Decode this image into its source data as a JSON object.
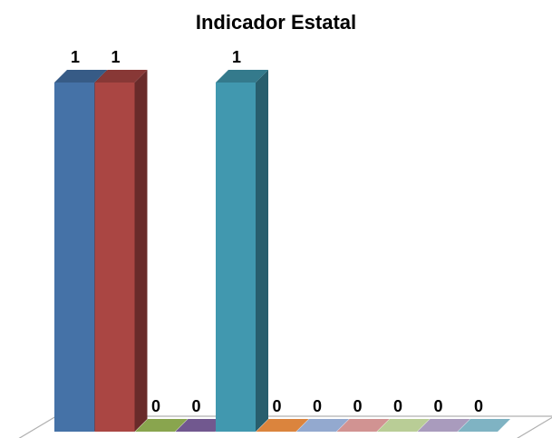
{
  "chart_data": {
    "type": "bar",
    "title": "Indicador Estatal",
    "xlabel": "",
    "ylabel": "",
    "ylim": [
      0,
      1
    ],
    "grid": false,
    "legend": "none",
    "three_d": true,
    "values": [
      1,
      1,
      0,
      0,
      1,
      0,
      0,
      0,
      0,
      0,
      0
    ],
    "data_labels": [
      "1",
      "1",
      "0",
      "0",
      "1",
      "0",
      "0",
      "0",
      "0",
      "0",
      "0"
    ],
    "colors": [
      "#4572a7",
      "#aa4643",
      "#89a54e",
      "#71588f",
      "#4198af",
      "#db843d",
      "#93a9cf",
      "#d19392",
      "#b9cd96",
      "#a99bbd",
      "#7fb3c3"
    ]
  }
}
